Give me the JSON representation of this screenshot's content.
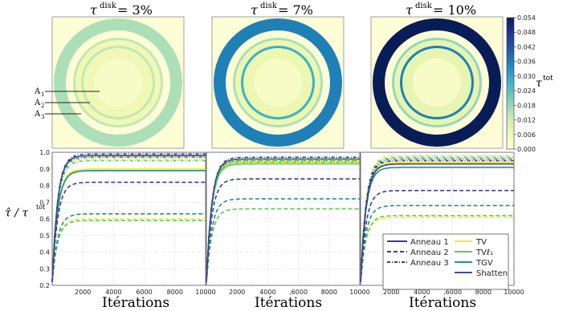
{
  "colormap": {
    "stops": [
      "#ffffd9",
      "#edf8b1",
      "#c7e9b4",
      "#7fcdbb",
      "#41b6c4",
      "#1d91c0",
      "#225ea8",
      "#253494",
      "#081d58"
    ],
    "vmin": 0.0,
    "vmax": 0.054
  },
  "colorbar": {
    "ticks": [
      "0.054",
      "0.048",
      "0.042",
      "0.036",
      "0.030",
      "0.024",
      "0.018",
      "0.012",
      "0.006",
      "0.000"
    ],
    "label_main": "τ",
    "label_sup": "tot"
  },
  "images": [
    {
      "title_main": "τ",
      "title_sup": "disk",
      "title_value": " = 3%",
      "center_value": 0.003,
      "mid_value": 0.006,
      "ring_inner_value": 0.014,
      "ring_outer_value": 0.014,
      "disk_value": 0.016,
      "bg_value": 0.0005,
      "labels": [
        "A",
        "A",
        "A"
      ],
      "label_subs": [
        "1",
        "2",
        "3"
      ]
    },
    {
      "title_main": "τ",
      "title_sup": "disk",
      "title_value": " = 7%",
      "center_value": 0.003,
      "mid_value": 0.007,
      "ring_inner_value": 0.028,
      "ring_outer_value": 0.016,
      "disk_value": 0.036,
      "bg_value": 0.0005
    },
    {
      "title_main": "τ",
      "title_sup": "disk",
      "title_value": " = 10%",
      "center_value": 0.003,
      "mid_value": 0.008,
      "ring_inner_value": 0.036,
      "ring_outer_value": 0.018,
      "disk_value": 0.054,
      "bg_value": 0.0005
    }
  ],
  "chart_data": {
    "type": "line",
    "ylabel_main": "τ̂ / τ",
    "ylabel_sup": "tot",
    "xlabel": "Itérations",
    "xlim": [
      0,
      10000
    ],
    "ylim": [
      0.2,
      1.0
    ],
    "yticks": [
      "0.2",
      "0.3",
      "0.4",
      "0.5",
      "0.6",
      "0.7",
      "0.8",
      "0.9",
      "1.0"
    ],
    "xticks_panel1": [
      "2000",
      "4000",
      "6000",
      "8000",
      "10000"
    ],
    "xticks_panel": [
      "2000",
      "4000",
      ",6000",
      "8000",
      "10000"
    ],
    "xticks_last": [
      "2000",
      "4000",
      ",6000",
      "8000",
      "10000"
    ],
    "legend": {
      "left": [
        {
          "label": "Anneau 1",
          "style": "solid"
        },
        {
          "label": "Anneau 2",
          "style": "dashed"
        },
        {
          "label": "Anneau 3",
          "style": "dashdot"
        }
      ],
      "right": [
        {
          "label": "TV",
          "color": "#fde725"
        },
        {
          "label": "TVℓ₁",
          "color": "#5ec962"
        },
        {
          "label": "TGV",
          "color": "#21918c"
        },
        {
          "label": "Shatten",
          "color": "#3b528b"
        }
      ],
      "position": "lower-right of third panel"
    },
    "panels": [
      {
        "series": [
          {
            "method": "TV",
            "ring": 1,
            "final": 0.9
          },
          {
            "method": "TVl1",
            "ring": 1,
            "final": 0.89
          },
          {
            "method": "TGV",
            "ring": 1,
            "final": 0.89
          },
          {
            "method": "Shatten",
            "ring": 1,
            "final": 0.98
          },
          {
            "method": "TV",
            "ring": 2,
            "final": 0.6
          },
          {
            "method": "TVl1",
            "ring": 2,
            "final": 0.59
          },
          {
            "method": "TGV",
            "ring": 2,
            "final": 0.63
          },
          {
            "method": "Shatten",
            "ring": 2,
            "final": 0.82
          },
          {
            "method": "TV",
            "ring": 3,
            "final": 0.96
          },
          {
            "method": "TVl1",
            "ring": 3,
            "final": 0.95
          },
          {
            "method": "TGV",
            "ring": 3,
            "final": 0.97
          },
          {
            "method": "Shatten",
            "ring": 3,
            "final": 0.99
          }
        ]
      },
      {
        "series": [
          {
            "method": "TV",
            "ring": 1,
            "final": 0.94
          },
          {
            "method": "TVl1",
            "ring": 1,
            "final": 0.93
          },
          {
            "method": "TGV",
            "ring": 1,
            "final": 0.95
          },
          {
            "method": "Shatten",
            "ring": 1,
            "final": 0.96
          },
          {
            "method": "TV",
            "ring": 2,
            "final": 0.66
          },
          {
            "method": "TVl1",
            "ring": 2,
            "final": 0.66
          },
          {
            "method": "TGV",
            "ring": 2,
            "final": 0.72
          },
          {
            "method": "Shatten",
            "ring": 2,
            "final": 0.84
          },
          {
            "method": "TV",
            "ring": 3,
            "final": 0.95
          },
          {
            "method": "TVl1",
            "ring": 3,
            "final": 0.94
          },
          {
            "method": "TGV",
            "ring": 3,
            "final": 0.96
          },
          {
            "method": "Shatten",
            "ring": 3,
            "final": 0.97
          }
        ]
      },
      {
        "series": [
          {
            "method": "TV",
            "ring": 1,
            "final": 0.94
          },
          {
            "method": "TVl1",
            "ring": 1,
            "final": 0.93
          },
          {
            "method": "TGV",
            "ring": 1,
            "final": 0.91
          },
          {
            "method": "Shatten",
            "ring": 1,
            "final": 0.93
          },
          {
            "method": "TV",
            "ring": 2,
            "final": 0.61
          },
          {
            "method": "TVl1",
            "ring": 2,
            "final": 0.62
          },
          {
            "method": "TGV",
            "ring": 2,
            "final": 0.68
          },
          {
            "method": "Shatten",
            "ring": 2,
            "final": 0.77
          },
          {
            "method": "TV",
            "ring": 3,
            "final": 0.98
          },
          {
            "method": "TVl1",
            "ring": 3,
            "final": 0.97
          },
          {
            "method": "TGV",
            "ring": 3,
            "final": 0.96
          },
          {
            "method": "Shatten",
            "ring": 3,
            "final": 0.95
          }
        ]
      }
    ]
  }
}
